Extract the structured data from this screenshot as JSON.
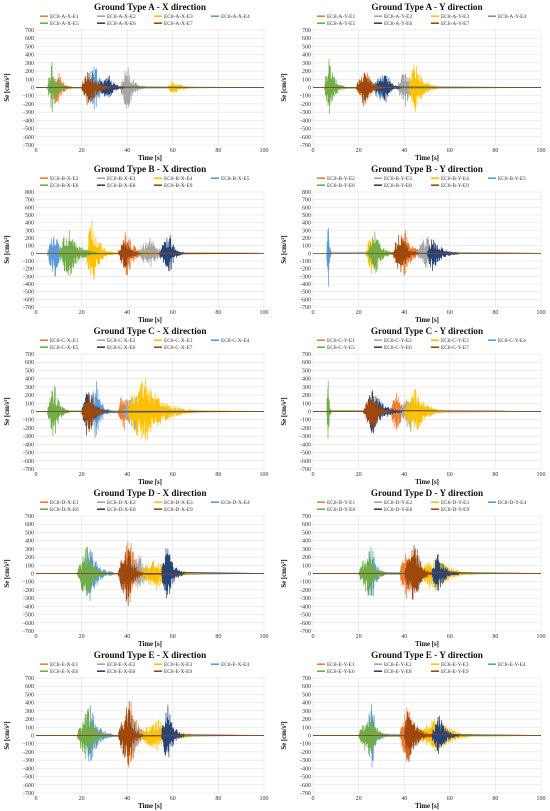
{
  "colors": [
    "#ED7D31",
    "#A5A5A5",
    "#FFC000",
    "#5B9BD5",
    "#70AD47",
    "#264478",
    "#9E480E",
    "#636363",
    "#997300"
  ],
  "charts": [
    {
      "title": "Ground Type A - X direction",
      "xlabel": "Time [s]",
      "ylabel": "Se [cm/s²]",
      "yticks": [
        "700",
        "600",
        "500",
        "400",
        "300",
        "200",
        "100",
        "0",
        "-100",
        "-200",
        "-300",
        "-400",
        "-500",
        "-600",
        "-700"
      ],
      "xticks": [
        "0",
        "20",
        "40",
        "60",
        "80",
        "100"
      ],
      "legend": [
        "EC8-A-X-E1",
        "EC8-A-X-E2",
        "EC8-A-X-E3",
        "EC8-A-X-E4",
        "EC8-A-X-E5",
        "EC8-A-X-E6",
        "EC8-A-X-E7"
      ]
    },
    {
      "title": "Ground Type A - Y direction",
      "xlabel": "Time [s]",
      "ylabel": "Se [cm/s²]",
      "yticks": [
        "700",
        "600",
        "500",
        "400",
        "300",
        "200",
        "100",
        "0",
        "-100",
        "-200",
        "-300",
        "-400",
        "-500",
        "-600",
        "-700"
      ],
      "xticks": [
        "0",
        "20",
        "40",
        "60",
        "80",
        "100"
      ],
      "legend": [
        "EC8-A-Y-E1",
        "EC8-A-Y-E2",
        "EC8-A-Y-E3",
        "EC8-A-Y-E4",
        "EC8-A-Y-E5",
        "EC8-A-Y-E6",
        "EC8-A-Y-E7"
      ]
    },
    {
      "title": "Ground Type B - X direction",
      "xlabel": "Time [s]",
      "ylabel": "Se [cm/s²]",
      "yticks": [
        "800",
        "700",
        "600",
        "500",
        "400",
        "300",
        "200",
        "100",
        "0",
        "-100",
        "-200",
        "-300",
        "-400",
        "-500",
        "-600",
        "-700"
      ],
      "xticks": [
        "0",
        "20",
        "40",
        "60",
        "80",
        "100"
      ],
      "legend": [
        "EC8-B-X-E2",
        "EC8-B-X-E3",
        "EC8-B-X-E4",
        "EC8-B-X-E5",
        "EC8-B-X-E6",
        "EC8-B-X-E8",
        "EC8-B-X-E9"
      ]
    },
    {
      "title": "Ground Type B - Y direction",
      "xlabel": "Time [s]",
      "ylabel": "Se [cm/s²]",
      "yticks": [
        "800",
        "700",
        "600",
        "500",
        "400",
        "300",
        "200",
        "100",
        "0",
        "-100",
        "-200",
        "-300",
        "-400",
        "-500",
        "-600",
        "-700"
      ],
      "xticks": [
        "0",
        "20",
        "40",
        "60",
        "80",
        "100"
      ],
      "legend": [
        "EC8-B-Y-E2",
        "EC8-B-Y-E3",
        "EC8-B-Y-E4",
        "EC8-B-Y-E5",
        "EC8-B-Y-E6",
        "EC8-B-Y-E8",
        "EC8-B-Y-E9"
      ]
    },
    {
      "title": "Ground Type C - X direction",
      "xlabel": "Time [s]",
      "ylabel": "Se [cm/s²]",
      "yticks": [
        "700",
        "600",
        "500",
        "400",
        "300",
        "200",
        "100",
        "0",
        "-100",
        "-200",
        "-300",
        "-400",
        "-500",
        "-600",
        "-700"
      ],
      "xticks": [
        "0",
        "20",
        "40",
        "60",
        "80",
        "100"
      ],
      "legend": [
        "EC8-C-X-E1",
        "EC8-C-X-E2",
        "EC8-C-X-E3",
        "EC8-C-X-E4",
        "EC8-C-X-E5",
        "EC8-C-X-E6",
        "EC8-C-X-E7"
      ]
    },
    {
      "title": "Ground Type C - Y direction",
      "xlabel": "Time [s]",
      "ylabel": "Se [cm/s²]",
      "yticks": [
        "700",
        "600",
        "500",
        "400",
        "300",
        "200",
        "100",
        "0",
        "-100",
        "-200",
        "-300",
        "-400",
        "-500",
        "-600",
        "-700"
      ],
      "xticks": [
        "0",
        "20",
        "40",
        "60",
        "80",
        "100"
      ],
      "legend": [
        "EC8-C-Y-E1",
        "EC8-C-Y-E2",
        "EC8-C-Y-E3",
        "EC8-C-Y-E4",
        "EC8-C-Y-E5",
        "EC8-C-Y-E6",
        "EC8-C-Y-E7"
      ]
    },
    {
      "title": "Ground Type D - X direction",
      "xlabel": "Time [s]",
      "ylabel": "Se [cm/s²]",
      "yticks": [
        "700",
        "600",
        "500",
        "400",
        "300",
        "200",
        "100",
        "0",
        "-100",
        "-200",
        "-300",
        "-400",
        "-500",
        "-600",
        "-700"
      ],
      "xticks": [
        "0",
        "20",
        "40",
        "60",
        "80",
        "100"
      ],
      "legend": [
        "EC8-D-X-E1",
        "EC8-D-X-E2",
        "EC8-D-X-E3",
        "EC8-D-X-E4",
        "EC8-D-X-E6",
        "EC8-D-X-E8",
        "EC8-D-X-E9"
      ]
    },
    {
      "title": "Ground Type D - Y direction",
      "xlabel": "Time [s]",
      "ylabel": "Se [cm/s²]",
      "yticks": [
        "700",
        "600",
        "500",
        "400",
        "300",
        "200",
        "100",
        "0",
        "-100",
        "-200",
        "-300",
        "-400",
        "-500",
        "-600",
        "-700"
      ],
      "xticks": [
        "0",
        "20",
        "40",
        "60",
        "80",
        "100"
      ],
      "legend": [
        "EC8-D-Y-E1",
        "EC8-D-Y-E2",
        "EC8-D-Y-E3",
        "EC8-D-Y-E4",
        "EC8-D-Y-E6",
        "EC8-D-Y-E8",
        "EC8-D-Y-E9"
      ]
    },
    {
      "title": "Ground Type E - X direction",
      "xlabel": "Time [s]",
      "ylabel": "Se [cm/s²]",
      "yticks": [
        "700",
        "600",
        "500",
        "400",
        "300",
        "200",
        "100",
        "0",
        "-100",
        "-200",
        "-300",
        "-400",
        "-500",
        "-600",
        "-700"
      ],
      "xticks": [
        "0",
        "20",
        "40",
        "60",
        "80",
        "100"
      ],
      "legend": [
        "EC8-E-X-E1",
        "EC8-E-X-E2",
        "EC8-E-X-E3",
        "EC8-E-X-E4",
        "EC8-E-X-E6",
        "EC8-E-X-E8",
        "EC8-E-X-E9"
      ]
    },
    {
      "title": "Ground Type E - Y direction",
      "xlabel": "Time [s]",
      "ylabel": "Se [cm/s²]",
      "yticks": [
        "700",
        "600",
        "500",
        "400",
        "300",
        "200",
        "100",
        "0",
        "-100",
        "-200",
        "-300",
        "-400",
        "-500",
        "-600",
        "-700"
      ],
      "xticks": [
        "0",
        "20",
        "40",
        "60",
        "80",
        "100"
      ],
      "legend": [
        "EC8-E-Y-E1",
        "EC8-E-Y-E2",
        "EC8-E-Y-E3",
        "EC8-E-Y-E4",
        "EC8-E-Y-E6",
        "EC8-E-Y-E8",
        "EC8-E-Y-E9"
      ]
    }
  ],
  "chart_data": [
    {
      "type": "line",
      "title": "Ground Type A - X direction",
      "xlabel": "Time [s]",
      "ylabel": "Se [cm/s²]",
      "xlim": [
        0,
        100
      ],
      "ylim": [
        -700,
        700
      ],
      "grid": true,
      "legend_position": "top",
      "series": [
        {
          "name": "EC8-A-X-E1",
          "start": 5,
          "end": 16,
          "peak": 230
        },
        {
          "name": "EC8-A-X-E2",
          "start": 37,
          "end": 48,
          "peak": 300
        },
        {
          "name": "EC8-A-X-E3",
          "start": 58,
          "end": 70,
          "peak": 100
        },
        {
          "name": "EC8-A-X-E4",
          "start": 22,
          "end": 33,
          "peak": 350
        },
        {
          "name": "EC8-A-X-E5",
          "start": 5,
          "end": 14,
          "peak": 320
        },
        {
          "name": "EC8-A-X-E6",
          "start": 27,
          "end": 39,
          "peak": 180
        },
        {
          "name": "EC8-A-X-E7",
          "start": 20,
          "end": 32,
          "peak": 290
        }
      ]
    },
    {
      "type": "line",
      "title": "Ground Type A - Y direction",
      "xlabel": "Time [s]",
      "ylabel": "Se [cm/s²]",
      "xlim": [
        0,
        100
      ],
      "ylim": [
        -700,
        700
      ],
      "grid": true,
      "legend_position": "top",
      "series": [
        {
          "name": "EC8-A-Y-E1",
          "start": 19,
          "end": 30,
          "peak": 230
        },
        {
          "name": "EC8-A-Y-E2",
          "start": 37,
          "end": 49,
          "peak": 250
        },
        {
          "name": "EC8-A-Y-E3",
          "start": 42,
          "end": 55,
          "peak": 350
        },
        {
          "name": "EC8-A-Y-E4",
          "start": 26,
          "end": 37,
          "peak": 200
        },
        {
          "name": "EC8-A-Y-E5",
          "start": 5,
          "end": 14,
          "peak": 380
        },
        {
          "name": "EC8-A-Y-E6",
          "start": 27,
          "end": 39,
          "peak": 200
        },
        {
          "name": "EC8-A-Y-E7",
          "start": 19,
          "end": 31,
          "peak": 240
        }
      ]
    },
    {
      "type": "line",
      "title": "Ground Type B - X direction",
      "xlabel": "Time [s]",
      "ylabel": "Se [cm/s²]",
      "xlim": [
        0,
        100
      ],
      "ylim": [
        -700,
        800
      ],
      "grid": true,
      "legend_position": "top",
      "series": [
        {
          "name": "EC8-B-X-E2",
          "start": 38,
          "end": 48,
          "peak": 380
        },
        {
          "name": "EC8-B-X-E3",
          "start": 44,
          "end": 62,
          "peak": 200
        },
        {
          "name": "EC8-B-X-E4",
          "start": 22,
          "end": 34,
          "peak": 480
        },
        {
          "name": "EC8-B-X-E5",
          "start": 5,
          "end": 14,
          "peak": 350
        },
        {
          "name": "EC8-B-X-E6",
          "start": 10,
          "end": 27,
          "peak": 350
        },
        {
          "name": "EC8-B-X-E8",
          "start": 54,
          "end": 65,
          "peak": 260
        },
        {
          "name": "EC8-B-X-E9",
          "start": 36,
          "end": 46,
          "peak": 250
        }
      ]
    },
    {
      "type": "line",
      "title": "Ground Type B - Y direction",
      "xlabel": "Time [s]",
      "ylabel": "Se [cm/s²]",
      "xlim": [
        0,
        100
      ],
      "ylim": [
        -700,
        800
      ],
      "grid": true,
      "legend_position": "top",
      "series": [
        {
          "name": "EC8-B-Y-E2",
          "start": 38,
          "end": 50,
          "peak": 350
        },
        {
          "name": "EC8-B-Y-E3",
          "start": 45,
          "end": 60,
          "peak": 250
        },
        {
          "name": "EC8-B-Y-E4",
          "start": 23,
          "end": 35,
          "peak": 280
        },
        {
          "name": "EC8-B-Y-E5",
          "start": 6,
          "end": 8,
          "peak": 480
        },
        {
          "name": "EC8-B-Y-E6",
          "start": 24,
          "end": 36,
          "peak": 300
        },
        {
          "name": "EC8-B-Y-E8",
          "start": 50,
          "end": 64,
          "peak": 260
        },
        {
          "name": "EC8-B-Y-E9",
          "start": 35,
          "end": 46,
          "peak": 330
        }
      ]
    },
    {
      "type": "line",
      "title": "Ground Type C - X direction",
      "xlabel": "Time [s]",
      "ylabel": "Se [cm/s²]",
      "xlim": [
        0,
        100
      ],
      "ylim": [
        -700,
        700
      ],
      "grid": true,
      "legend_position": "top",
      "series": [
        {
          "name": "EC8-C-X-E1",
          "start": 36,
          "end": 46,
          "peak": 300
        },
        {
          "name": "EC8-C-X-E2",
          "start": 38,
          "end": 52,
          "peak": 250
        },
        {
          "name": "EC8-C-X-E3",
          "start": 40,
          "end": 70,
          "peak": 440
        },
        {
          "name": "EC8-C-X-E4",
          "start": 22,
          "end": 33,
          "peak": 380
        },
        {
          "name": "EC8-C-X-E5",
          "start": 5,
          "end": 15,
          "peak": 360
        },
        {
          "name": "EC8-C-X-E6",
          "start": 20,
          "end": 32,
          "peak": 300
        },
        {
          "name": "EC8-C-X-E7",
          "start": 20,
          "end": 31,
          "peak": 280
        }
      ]
    },
    {
      "type": "line",
      "title": "Ground Type C - Y direction",
      "xlabel": "Time [s]",
      "ylabel": "Se [cm/s²]",
      "xlim": [
        0,
        100
      ],
      "ylim": [
        -700,
        700
      ],
      "grid": true,
      "legend_position": "top",
      "series": [
        {
          "name": "EC8-C-Y-E1",
          "start": 34,
          "end": 45,
          "peak": 280
        },
        {
          "name": "EC8-C-Y-E2",
          "start": 38,
          "end": 50,
          "peak": 250
        },
        {
          "name": "EC8-C-Y-E3",
          "start": 40,
          "end": 58,
          "peak": 300
        },
        {
          "name": "EC8-C-Y-E4",
          "start": 25,
          "end": 37,
          "peak": 250
        },
        {
          "name": "EC8-C-Y-E5",
          "start": 6,
          "end": 8,
          "peak": 450
        },
        {
          "name": "EC8-C-Y-E6",
          "start": 23,
          "end": 39,
          "peak": 310
        },
        {
          "name": "EC8-C-Y-E7",
          "start": 22,
          "end": 34,
          "peak": 260
        }
      ]
    },
    {
      "type": "line",
      "title": "Ground Type D - X direction",
      "xlabel": "Time [s]",
      "ylabel": "Se [cm/s²]",
      "xlim": [
        0,
        100
      ],
      "ylim": [
        -700,
        700
      ],
      "grid": true,
      "legend_position": "top",
      "series": [
        {
          "name": "EC8-D-X-E1",
          "start": 38,
          "end": 50,
          "peak": 530
        },
        {
          "name": "EC8-D-X-E2",
          "start": 40,
          "end": 54,
          "peak": 250
        },
        {
          "name": "EC8-D-X-E3",
          "start": 45,
          "end": 72,
          "peak": 200
        },
        {
          "name": "EC8-D-X-E4",
          "start": 21,
          "end": 34,
          "peak": 400
        },
        {
          "name": "EC8-D-X-E6",
          "start": 18,
          "end": 31,
          "peak": 350
        },
        {
          "name": "EC8-D-X-E8",
          "start": 55,
          "end": 65,
          "peak": 430
        },
        {
          "name": "EC8-D-X-E9",
          "start": 36,
          "end": 47,
          "peak": 430
        }
      ]
    },
    {
      "type": "line",
      "title": "Ground Type D - Y direction",
      "xlabel": "Time [s]",
      "ylabel": "Se [cm/s²]",
      "xlim": [
        0,
        100
      ],
      "ylim": [
        -700,
        700
      ],
      "grid": true,
      "legend_position": "top",
      "series": [
        {
          "name": "EC8-D-Y-E1",
          "start": 38,
          "end": 50,
          "peak": 380
        },
        {
          "name": "EC8-D-Y-E2",
          "start": 40,
          "end": 54,
          "peak": 250
        },
        {
          "name": "EC8-D-Y-E3",
          "start": 45,
          "end": 72,
          "peak": 230
        },
        {
          "name": "EC8-D-Y-E4",
          "start": 24,
          "end": 32,
          "peak": 420
        },
        {
          "name": "EC8-D-Y-E6",
          "start": 20,
          "end": 33,
          "peak": 300
        },
        {
          "name": "EC8-D-Y-E8",
          "start": 52,
          "end": 64,
          "peak": 260
        },
        {
          "name": "EC8-D-Y-E9",
          "start": 40,
          "end": 52,
          "peak": 400
        }
      ]
    },
    {
      "type": "line",
      "title": "Ground Type E - X direction",
      "xlabel": "Time [s]",
      "ylabel": "Se [cm/s²]",
      "xlim": [
        0,
        100
      ],
      "ylim": [
        -700,
        700
      ],
      "grid": true,
      "legend_position": "top",
      "series": [
        {
          "name": "EC8-E-X-E1",
          "start": 38,
          "end": 50,
          "peak": 520
        },
        {
          "name": "EC8-E-X-E2",
          "start": 40,
          "end": 54,
          "peak": 250
        },
        {
          "name": "EC8-E-X-E3",
          "start": 45,
          "end": 72,
          "peak": 200
        },
        {
          "name": "EC8-E-X-E4",
          "start": 21,
          "end": 34,
          "peak": 400
        },
        {
          "name": "EC8-E-X-E6",
          "start": 18,
          "end": 31,
          "peak": 350
        },
        {
          "name": "EC8-E-X-E8",
          "start": 55,
          "end": 65,
          "peak": 430
        },
        {
          "name": "EC8-E-X-E9",
          "start": 36,
          "end": 47,
          "peak": 430
        }
      ]
    },
    {
      "type": "line",
      "title": "Ground Type E - Y direction",
      "xlabel": "Time [s]",
      "ylabel": "Se [cm/s²]",
      "xlim": [
        0,
        100
      ],
      "ylim": [
        -700,
        700
      ],
      "grid": true,
      "legend_position": "top",
      "series": [
        {
          "name": "EC8-E-Y-E1",
          "start": 38,
          "end": 50,
          "peak": 380
        },
        {
          "name": "EC8-E-Y-E2",
          "start": 40,
          "end": 54,
          "peak": 250
        },
        {
          "name": "EC8-E-Y-E3",
          "start": 45,
          "end": 72,
          "peak": 230
        },
        {
          "name": "EC8-E-Y-E4",
          "start": 24,
          "end": 32,
          "peak": 420
        },
        {
          "name": "EC8-E-Y-E6",
          "start": 20,
          "end": 33,
          "peak": 300
        },
        {
          "name": "EC8-E-Y-E8",
          "start": 52,
          "end": 64,
          "peak": 260
        },
        {
          "name": "EC8-E-Y-E9",
          "start": 40,
          "end": 52,
          "peak": 400
        }
      ]
    }
  ]
}
